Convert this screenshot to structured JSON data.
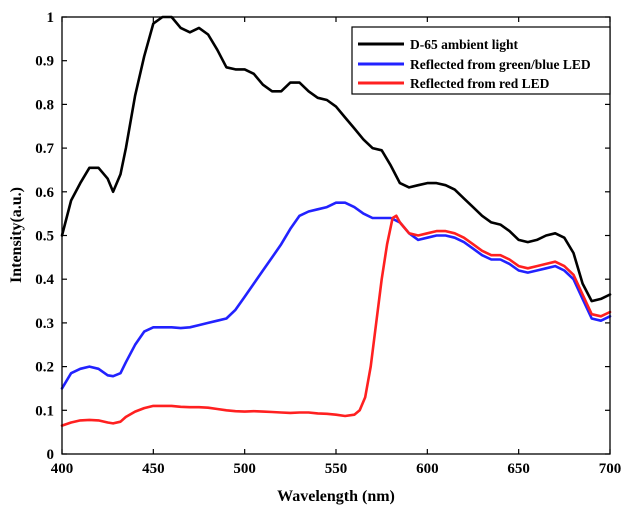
{
  "chart_data": {
    "type": "line",
    "title": "",
    "xlabel": "Wavelength (nm)",
    "ylabel": "Intensity(a.u.)",
    "xlim": [
      400,
      700
    ],
    "ylim": [
      0,
      1
    ],
    "xticks": [
      400,
      450,
      500,
      550,
      600,
      650,
      700
    ],
    "yticks": [
      0,
      0.1,
      0.2,
      0.3,
      0.4,
      0.5,
      0.6,
      0.7,
      0.8,
      0.9,
      1
    ],
    "ytick_labels": [
      "0",
      "0.1",
      "0.2",
      "0.3",
      "0.4",
      "0.5",
      "0.6",
      "0.7",
      "0.8",
      "0.9",
      "1"
    ],
    "grid": false,
    "legend_position": "top-right",
    "series": [
      {
        "name": "D-65 ambient light",
        "color": "#000000",
        "x": [
          400,
          405,
          410,
          415,
          420,
          425,
          428,
          432,
          435,
          440,
          445,
          450,
          455,
          460,
          465,
          470,
          475,
          480,
          485,
          490,
          495,
          500,
          505,
          510,
          515,
          520,
          525,
          530,
          535,
          540,
          545,
          550,
          555,
          560,
          565,
          570,
          575,
          580,
          585,
          590,
          595,
          600,
          605,
          610,
          615,
          620,
          625,
          630,
          635,
          640,
          645,
          650,
          655,
          660,
          665,
          670,
          675,
          680,
          685,
          690,
          695,
          700
        ],
        "values": [
          0.5,
          0.58,
          0.62,
          0.655,
          0.655,
          0.63,
          0.6,
          0.64,
          0.7,
          0.82,
          0.91,
          0.985,
          1.0,
          1.0,
          0.975,
          0.965,
          0.975,
          0.96,
          0.925,
          0.885,
          0.88,
          0.88,
          0.87,
          0.845,
          0.83,
          0.83,
          0.85,
          0.85,
          0.83,
          0.815,
          0.81,
          0.795,
          0.77,
          0.745,
          0.72,
          0.7,
          0.695,
          0.66,
          0.62,
          0.61,
          0.615,
          0.62,
          0.62,
          0.615,
          0.605,
          0.585,
          0.565,
          0.545,
          0.53,
          0.525,
          0.51,
          0.49,
          0.485,
          0.49,
          0.5,
          0.505,
          0.495,
          0.46,
          0.39,
          0.35,
          0.355,
          0.365
        ]
      },
      {
        "name": "Reflected from green/blue LED",
        "color": "#2222ff",
        "x": [
          400,
          405,
          410,
          415,
          420,
          425,
          428,
          432,
          435,
          440,
          445,
          450,
          455,
          460,
          465,
          470,
          475,
          480,
          485,
          490,
          495,
          500,
          505,
          510,
          515,
          520,
          525,
          530,
          535,
          540,
          545,
          550,
          555,
          560,
          565,
          570,
          575,
          580,
          585,
          590,
          595,
          600,
          605,
          610,
          615,
          620,
          625,
          630,
          635,
          640,
          645,
          650,
          655,
          660,
          665,
          670,
          675,
          680,
          685,
          690,
          695,
          700
        ],
        "values": [
          0.15,
          0.185,
          0.195,
          0.2,
          0.195,
          0.18,
          0.178,
          0.185,
          0.21,
          0.25,
          0.28,
          0.29,
          0.29,
          0.29,
          0.288,
          0.29,
          0.295,
          0.3,
          0.305,
          0.31,
          0.33,
          0.36,
          0.39,
          0.42,
          0.45,
          0.48,
          0.515,
          0.545,
          0.555,
          0.56,
          0.565,
          0.575,
          0.575,
          0.565,
          0.55,
          0.54,
          0.54,
          0.54,
          0.53,
          0.505,
          0.49,
          0.495,
          0.5,
          0.5,
          0.495,
          0.485,
          0.47,
          0.455,
          0.445,
          0.445,
          0.435,
          0.42,
          0.415,
          0.42,
          0.425,
          0.43,
          0.42,
          0.4,
          0.355,
          0.31,
          0.305,
          0.315
        ]
      },
      {
        "name": "Reflected from red LED",
        "color": "#ff2020",
        "x": [
          400,
          405,
          410,
          415,
          420,
          425,
          428,
          432,
          435,
          440,
          445,
          450,
          455,
          460,
          465,
          470,
          475,
          480,
          485,
          490,
          495,
          500,
          505,
          510,
          515,
          520,
          525,
          530,
          535,
          540,
          545,
          550,
          555,
          560,
          563,
          566,
          569,
          572,
          575,
          578,
          581,
          583,
          585,
          590,
          595,
          600,
          605,
          610,
          615,
          620,
          625,
          630,
          635,
          640,
          645,
          650,
          655,
          660,
          665,
          670,
          675,
          680,
          685,
          690,
          695,
          700
        ],
        "values": [
          0.065,
          0.072,
          0.077,
          0.078,
          0.077,
          0.072,
          0.07,
          0.074,
          0.085,
          0.097,
          0.105,
          0.11,
          0.11,
          0.11,
          0.108,
          0.107,
          0.107,
          0.106,
          0.103,
          0.1,
          0.098,
          0.097,
          0.098,
          0.097,
          0.096,
          0.095,
          0.094,
          0.095,
          0.095,
          0.093,
          0.092,
          0.09,
          0.087,
          0.09,
          0.1,
          0.13,
          0.2,
          0.3,
          0.4,
          0.48,
          0.54,
          0.545,
          0.53,
          0.505,
          0.5,
          0.505,
          0.51,
          0.51,
          0.505,
          0.495,
          0.48,
          0.465,
          0.455,
          0.455,
          0.445,
          0.43,
          0.425,
          0.43,
          0.435,
          0.44,
          0.43,
          0.41,
          0.365,
          0.32,
          0.315,
          0.325
        ]
      }
    ]
  }
}
